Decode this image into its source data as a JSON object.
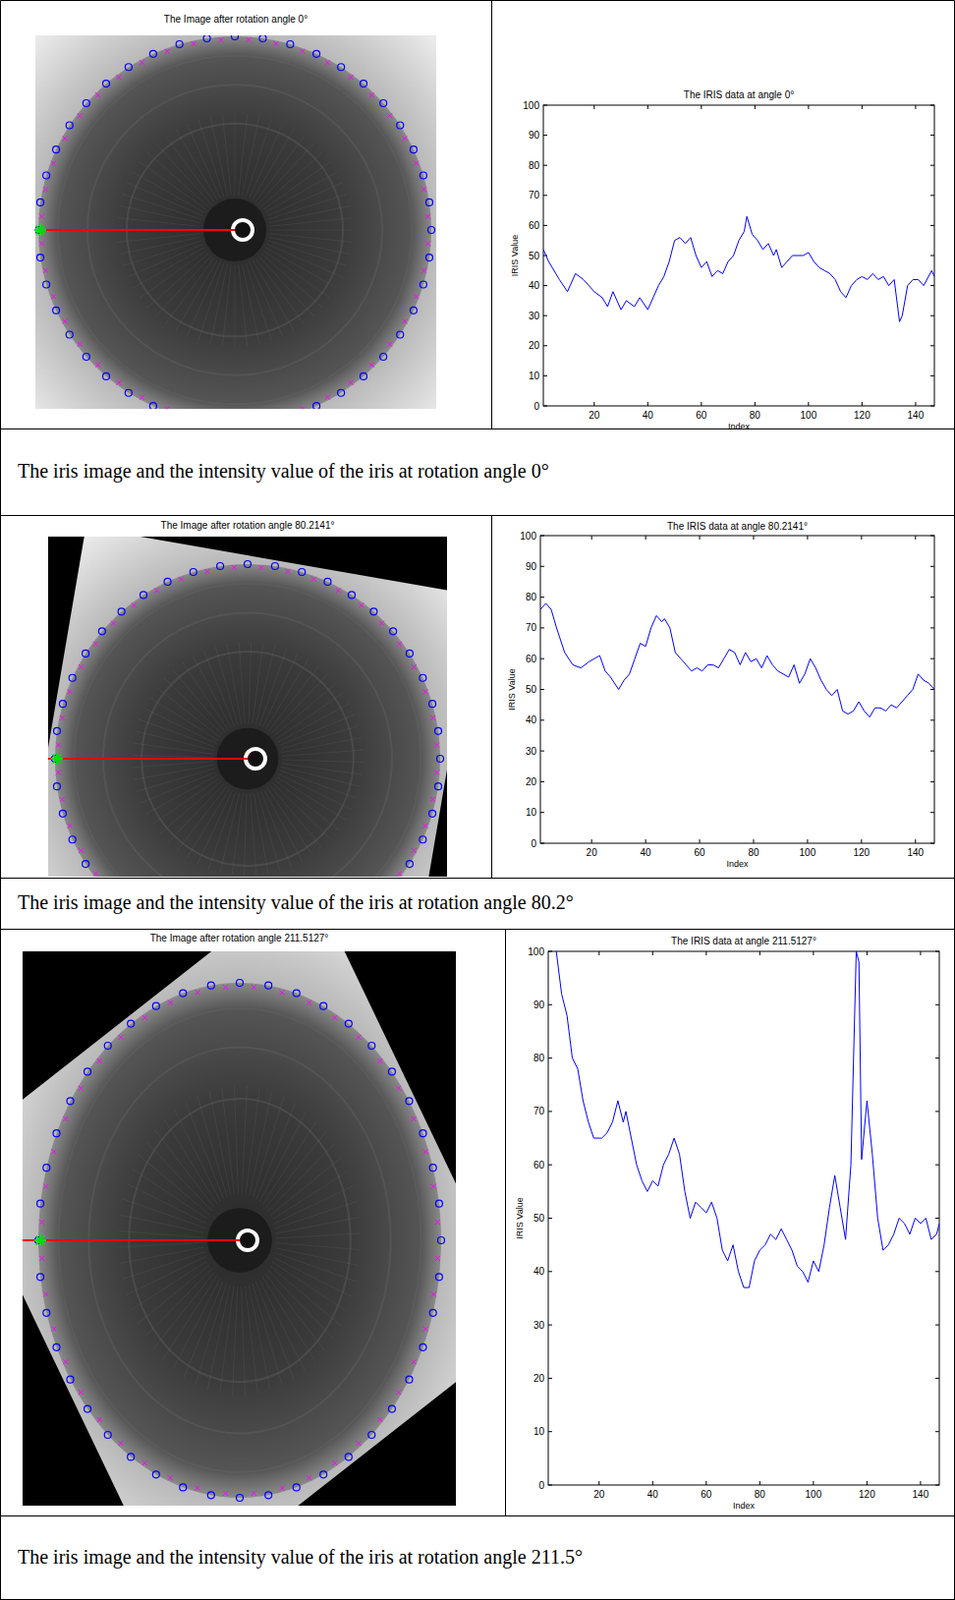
{
  "chart_data": [
    {
      "type": "line",
      "title": "The IRIS data at angle 0°",
      "x_label": "Index",
      "y_label": "IRIS Value",
      "color": "#0000ff",
      "xlim": [
        1,
        147
      ],
      "ylim": [
        0,
        100
      ],
      "xticks": [
        20,
        40,
        60,
        80,
        100,
        120,
        140
      ],
      "yticks": [
        0,
        10,
        20,
        30,
        40,
        50,
        60,
        70,
        80,
        90,
        100
      ],
      "x": [
        1,
        3,
        7,
        10,
        13,
        16,
        20,
        23,
        25,
        27,
        30,
        32,
        35,
        37,
        40,
        42,
        44,
        46,
        48,
        50,
        52,
        54,
        56,
        58,
        60,
        62,
        64,
        66,
        68,
        70,
        72,
        74,
        76,
        77,
        79,
        81,
        83,
        85,
        87,
        88,
        90,
        92,
        94,
        98,
        100,
        102,
        104,
        106,
        108,
        110,
        112,
        114,
        116,
        118,
        120,
        122,
        124,
        126,
        128,
        130,
        132,
        134,
        135,
        137,
        139,
        141,
        143,
        146,
        147
      ],
      "values": [
        52,
        48,
        42,
        38,
        44,
        42,
        38,
        36,
        33,
        38,
        32,
        35,
        33,
        36,
        32,
        36,
        40,
        43,
        48,
        55,
        56,
        54,
        56,
        50,
        46,
        48,
        43,
        45,
        44,
        48,
        50,
        55,
        58,
        63,
        57,
        55,
        52,
        54,
        50,
        52,
        46,
        48,
        50,
        50,
        51,
        48,
        46,
        45,
        44,
        42,
        38,
        36,
        40,
        42,
        43,
        42,
        44,
        42,
        43,
        40,
        42,
        28,
        30,
        40,
        42,
        42,
        40,
        45,
        43
      ]
    },
    {
      "type": "line",
      "title": "The IRIS data at angle 80.2141°",
      "x_label": "Index",
      "y_label": "IRIS Value",
      "color": "#0000ff",
      "xlim": [
        1,
        147
      ],
      "ylim": [
        0,
        100
      ],
      "xticks": [
        20,
        40,
        60,
        80,
        100,
        120,
        140
      ],
      "yticks": [
        0,
        10,
        20,
        30,
        40,
        50,
        60,
        70,
        80,
        90,
        100
      ],
      "x": [
        1,
        3,
        5,
        7,
        10,
        13,
        16,
        19,
        21,
        23,
        25,
        27,
        30,
        32,
        34,
        36,
        38,
        40,
        42,
        44,
        46,
        47,
        49,
        51,
        53,
        55,
        57,
        59,
        61,
        63,
        65,
        67,
        69,
        71,
        73,
        75,
        77,
        79,
        81,
        83,
        85,
        87,
        89,
        91,
        93,
        95,
        97,
        99,
        101,
        103,
        105,
        107,
        109,
        111,
        113,
        115,
        117,
        119,
        121,
        123,
        125,
        127,
        129,
        131,
        133,
        135,
        137,
        139,
        141,
        143,
        145,
        147
      ],
      "values": [
        76,
        78,
        76,
        70,
        62,
        58,
        57,
        59,
        60,
        61,
        56,
        54,
        50,
        53,
        55,
        60,
        65,
        64,
        70,
        74,
        72,
        73,
        70,
        62,
        60,
        58,
        56,
        57,
        56,
        58,
        58,
        57,
        60,
        63,
        62,
        58,
        62,
        59,
        60,
        57,
        61,
        58,
        56,
        55,
        54,
        58,
        52,
        55,
        60,
        57,
        53,
        50,
        48,
        50,
        43,
        42,
        43,
        46,
        43,
        41,
        44,
        44,
        43,
        45,
        44,
        46,
        48,
        50,
        55,
        53,
        52,
        50
      ]
    },
    {
      "type": "line",
      "title": "The IRIS data at angle 211.5127°",
      "x_label": "Index",
      "y_label": "IRIS Value",
      "color": "#0000ff",
      "xlim": [
        1,
        147
      ],
      "ylim": [
        0,
        100
      ],
      "xticks": [
        20,
        40,
        60,
        80,
        100,
        120,
        140
      ],
      "yticks": [
        0,
        10,
        20,
        30,
        40,
        50,
        60,
        70,
        80,
        90,
        100
      ],
      "x": [
        4,
        6,
        8,
        10,
        12,
        14,
        16,
        18,
        21,
        23,
        25,
        27,
        29,
        30,
        32,
        34,
        36,
        38,
        40,
        42,
        44,
        46,
        48,
        50,
        52,
        54,
        56,
        58,
        60,
        62,
        64,
        66,
        68,
        70,
        72,
        74,
        76,
        78,
        80,
        82,
        84,
        86,
        88,
        90,
        92,
        94,
        96,
        98,
        100,
        102,
        104,
        106,
        108,
        110,
        112,
        114,
        116,
        117,
        118,
        120,
        122,
        124,
        126,
        128,
        130,
        132,
        134,
        136,
        138,
        140,
        142,
        144,
        146,
        147
      ],
      "values": [
        100,
        92,
        88,
        80,
        78,
        72,
        68,
        65,
        65,
        66,
        68,
        72,
        68,
        70,
        65,
        60,
        57,
        55,
        57,
        56,
        60,
        62,
        65,
        62,
        55,
        50,
        53,
        52,
        51,
        53,
        50,
        44,
        42,
        45,
        40,
        37,
        37,
        42,
        44,
        45,
        47,
        46,
        48,
        46,
        44,
        41,
        40,
        38,
        42,
        40,
        45,
        52,
        58,
        52,
        46,
        60,
        100,
        98,
        61,
        72,
        62,
        50,
        44,
        45,
        47,
        50,
        49,
        47,
        50,
        49,
        50,
        46,
        47,
        49
      ]
    }
  ],
  "images": [
    {
      "title": "The Image after rotation angle 0°",
      "angle": 0
    },
    {
      "title": "The Image after rotation angle 80.2141°",
      "angle": 80.2141
    },
    {
      "title": "The Image after rotation angle 211.5127°",
      "angle": 211.5127
    }
  ],
  "captions": [
    "The iris image and the intensity value of the iris at rotation angle 0°",
    "The iris image and the intensity value of the iris at rotation angle 80.2°",
    "The iris image and the intensity value of the iris at rotation angle 211.5°"
  ]
}
